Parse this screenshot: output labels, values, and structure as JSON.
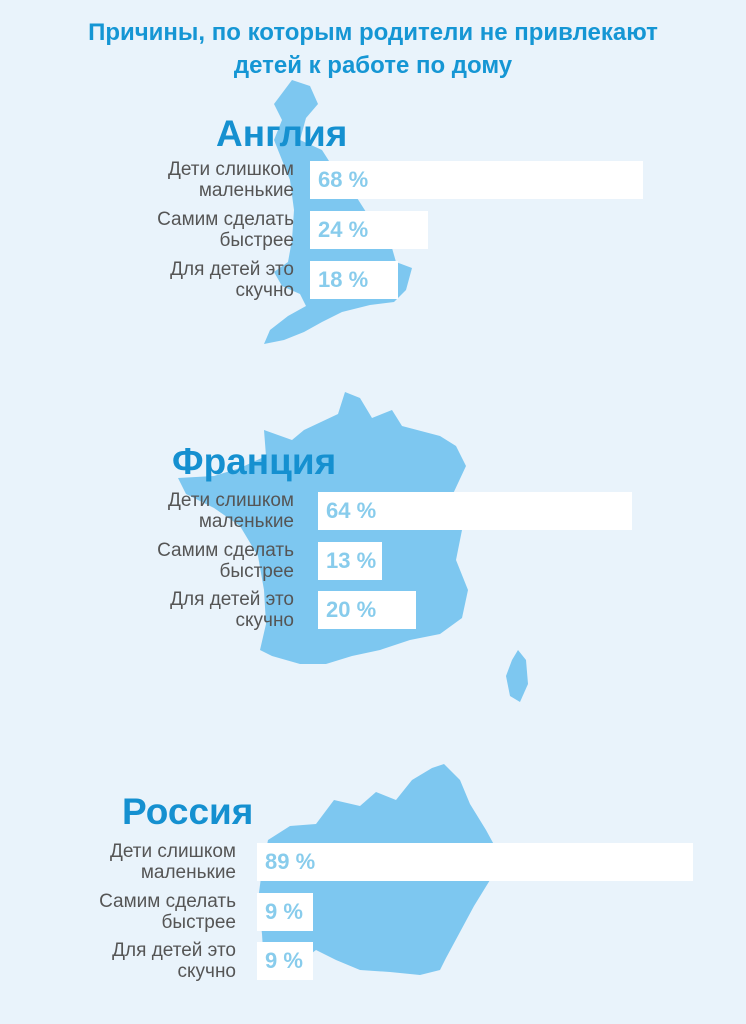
{
  "title_lines": [
    "Причины, по которым родители не привлекают",
    "детей к работе по дому"
  ],
  "colors": {
    "title": "#1596d4",
    "country": "#1590d0",
    "map": "#7dc7f0",
    "bar": "#ffffff",
    "value": "#88ccec",
    "background": "#e9f3fb"
  },
  "chart_data": [
    {
      "type": "bar",
      "title": "Англия",
      "categories": [
        "Дети слишком маленькие",
        "Самим сделать быстрее",
        "Для детей это скучно"
      ],
      "values": [
        68,
        24,
        18
      ],
      "value_labels": [
        "68 %",
        "24 %",
        "18 %"
      ],
      "category_lines": [
        [
          "Дети слишком",
          "маленькие"
        ],
        [
          "Самим сделать",
          "быстрее"
        ],
        [
          "Для детей это",
          "скучно"
        ]
      ]
    },
    {
      "type": "bar",
      "title": "Франция",
      "categories": [
        "Дети слишком маленькие",
        "Самим сделать быстрее",
        "Для детей это скучно"
      ],
      "values": [
        64,
        13,
        20
      ],
      "value_labels": [
        "64 %",
        "13 %",
        "20 %"
      ],
      "category_lines": [
        [
          "Дети слишком",
          "маленькие"
        ],
        [
          "Самим сделать",
          "быстрее"
        ],
        [
          "Для детей это",
          "скучно"
        ]
      ]
    },
    {
      "type": "bar",
      "title": "Россия",
      "categories": [
        "Дети слишком маленькие",
        "Самим сделать быстрее",
        "Для детей это скучно"
      ],
      "values": [
        89,
        9,
        9
      ],
      "value_labels": [
        "89 %",
        "9 %",
        "9 %"
      ],
      "category_lines": [
        [
          "Дети слишком",
          "маленькие"
        ],
        [
          "Самим сделать",
          "быстрее"
        ],
        [
          "Для детей это",
          "скучно"
        ]
      ]
    }
  ]
}
